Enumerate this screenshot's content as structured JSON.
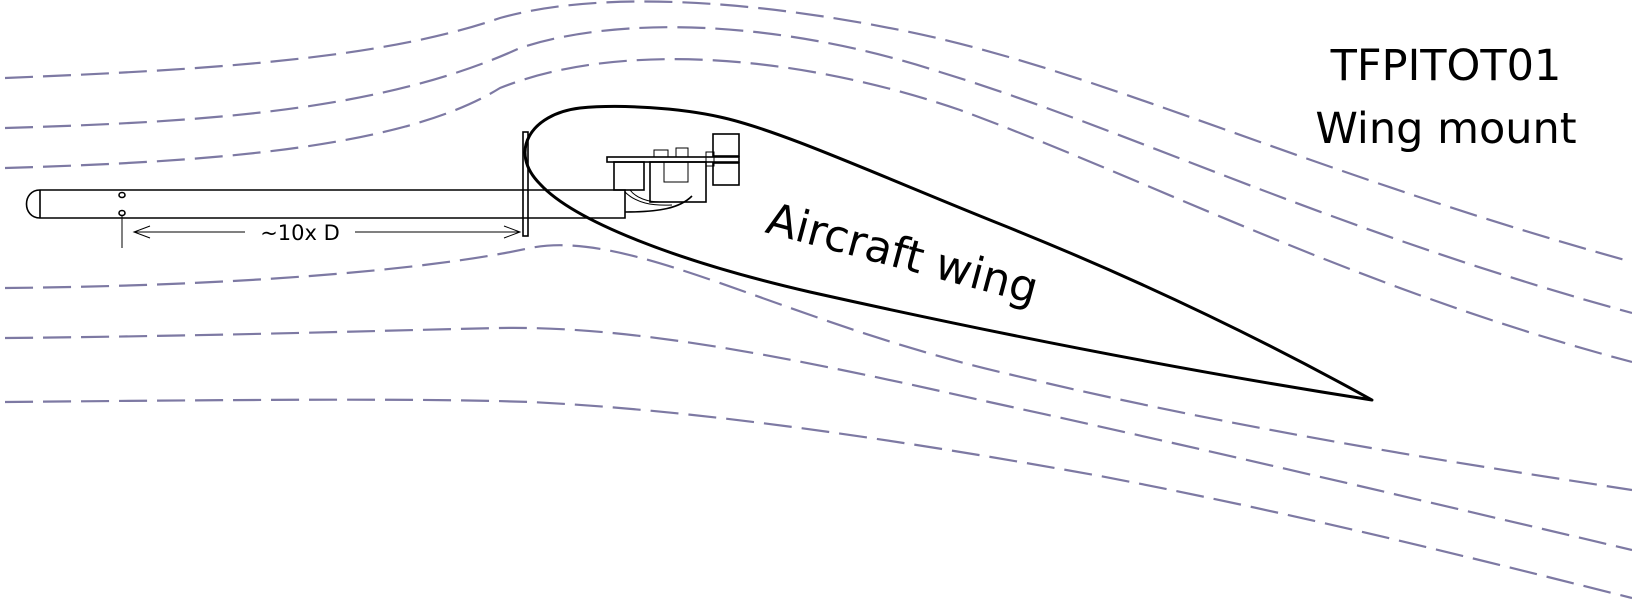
{
  "title": {
    "line1": "TFPITOT01",
    "line2": "Wing mount"
  },
  "wing_label": "Aircraft wing",
  "dimension_label": "~10x D",
  "colors": {
    "streamline": "#7d79a3",
    "outline": "#000000",
    "text": "#000000",
    "background": "#ffffff"
  }
}
